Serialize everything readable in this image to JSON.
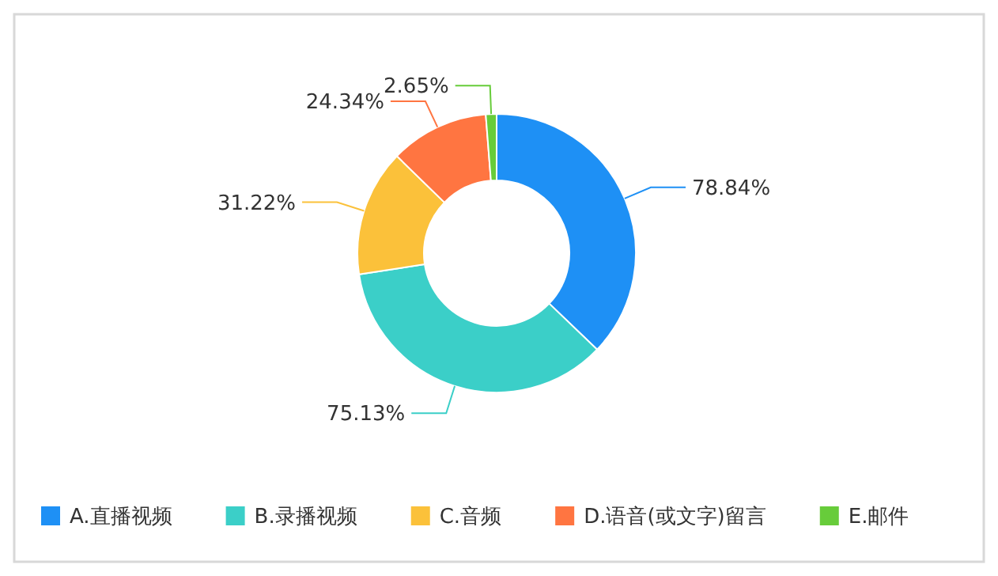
{
  "chart_data": {
    "type": "donut",
    "categories": [
      "A.直播视频",
      "B.录播视频",
      "C.音频",
      "D.语音(或文字)留言",
      "E.邮件"
    ],
    "values": [
      78.84,
      75.13,
      31.22,
      24.34,
      2.65
    ],
    "colors": [
      "#1e90f5",
      "#3bcfc8",
      "#fbc13a",
      "#ff7541",
      "#67cc3a"
    ],
    "value_labels": [
      "78.84%",
      "75.13%",
      "31.22%",
      "24.34%",
      "2.65%"
    ],
    "legend": "bottom"
  }
}
